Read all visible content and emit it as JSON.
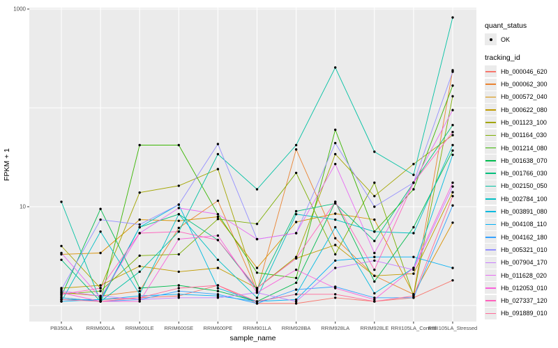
{
  "figure": {
    "background": "#FFFFFF",
    "panel_background": "#EBEBEB",
    "grid_color": "#FFFFFF",
    "point_color": "#000000",
    "axis_text_color": "#4D4D4D",
    "axis_title_color": "#000000"
  },
  "legend": {
    "quant_status": {
      "title": "quant_status",
      "items": [
        {
          "label": "OK",
          "marker": "point",
          "color": "#000000"
        }
      ]
    },
    "tracking_id": {
      "title": "tracking_id"
    }
  },
  "chart_data": {
    "type": "line",
    "title": "",
    "xlabel": "sample_name",
    "ylabel": "FPKM + 1",
    "y_scale": "log10",
    "ylim": [
      0.7,
      1050
    ],
    "y_tick_labels": [
      {
        "value": 10,
        "label": "10"
      },
      {
        "value": 1000,
        "label": "1000"
      }
    ],
    "y_gridlines": [
      1,
      10,
      100,
      1000
    ],
    "grid": "major",
    "legend_position": "right",
    "marker": "black-point",
    "categories": [
      "PB350LA",
      "RRIM600LA",
      "RRIM600LE",
      "RRIM600SE",
      "RRIM600PE",
      "RRIM901LA",
      "RRIM928BA",
      "RRIM928LA",
      "RRIM928LE",
      "RRII105LA_Control",
      "RRII105LA_Stressed"
    ],
    "series": [
      {
        "name": "Hb_000046_620",
        "color": "#F8766D",
        "values": [
          1.15,
          1.15,
          1.2,
          1.25,
          1.6,
          1.05,
          1.05,
          1.2,
          1.1,
          1.2,
          1.8
        ]
      },
      {
        "name": "Hb_000062_300",
        "color": "#EA8331",
        "values": [
          1.35,
          1.25,
          1.4,
          6.1,
          11.5,
          1.4,
          38,
          4.8,
          2.0,
          1.3,
          240
        ]
      },
      {
        "name": "Hb_000572_040",
        "color": "#D89000",
        "values": [
          3.3,
          3.4,
          7.4,
          7.2,
          7.9,
          2.4,
          7.0,
          8.5,
          7.4,
          1.3,
          6.9
        ]
      },
      {
        "name": "Hb_000622_080",
        "color": "#C09B00",
        "values": [
          1.5,
          1.6,
          2.5,
          2.2,
          2.4,
          1.5,
          3.0,
          4.1,
          2.0,
          2.1,
          14
        ]
      },
      {
        "name": "Hb_001123_100",
        "color": "#A3A500",
        "values": [
          4.0,
          1.5,
          13.9,
          16.3,
          24,
          1.5,
          3.1,
          34,
          12.8,
          27,
          53
        ]
      },
      {
        "name": "Hb_001164_030",
        "color": "#7CAE00",
        "values": [
          1.3,
          1.4,
          3.2,
          3.3,
          7.5,
          6.7,
          22,
          3.3,
          17.5,
          1.25,
          131
        ]
      },
      {
        "name": "Hb_001214_080",
        "color": "#39B600",
        "values": [
          1.2,
          1.1,
          42,
          42,
          8.4,
          2.15,
          1.9,
          60,
          5.6,
          15,
          168
        ]
      },
      {
        "name": "Hb_001638_070",
        "color": "#00BB4E",
        "values": [
          1.25,
          9.5,
          1.5,
          1.6,
          1.4,
          1.1,
          1.7,
          11.2,
          1.75,
          6.2,
          37
        ]
      },
      {
        "name": "Hb_001766_030",
        "color": "#00BF7D",
        "values": [
          2.9,
          1.1,
          6.2,
          8.4,
          4.6,
          1.45,
          9.0,
          10.8,
          4.5,
          17.5,
          67
        ]
      },
      {
        "name": "Hb_002150_050",
        "color": "#00C1A3",
        "values": [
          11.2,
          1.1,
          2.2,
          5.6,
          34,
          15,
          42,
          256,
          36,
          21,
          822
        ]
      },
      {
        "name": "Hb_002784_100",
        "color": "#00BFC4",
        "values": [
          1.1,
          5.6,
          1.3,
          8.4,
          2.9,
          1.2,
          8.4,
          7.4,
          5.6,
          5.4,
          42
        ]
      },
      {
        "name": "Hb_003891_080",
        "color": "#00BAE0",
        "values": [
          1.15,
          1.15,
          6.2,
          10.5,
          1.5,
          1.1,
          1.3,
          6.2,
          1.33,
          2.4,
          33.5
        ]
      },
      {
        "name": "Hb_004108_110",
        "color": "#00B0F6",
        "values": [
          1.1,
          1.15,
          1.25,
          1.3,
          1.25,
          1.1,
          1.15,
          2.85,
          3.1,
          3.1,
          2.4
        ]
      },
      {
        "name": "Hb_004162_180",
        "color": "#35A2FF",
        "values": [
          1.2,
          1.1,
          1.15,
          1.4,
          1.3,
          1.05,
          1.45,
          1.55,
          1.2,
          1.2,
          10.3
        ]
      },
      {
        "name": "Hb_005321_010",
        "color": "#9590FF",
        "values": [
          1.45,
          7.4,
          6.6,
          10.5,
          43,
          4.7,
          5.4,
          44,
          10.0,
          17.5,
          232
        ]
      },
      {
        "name": "Hb_007904_170",
        "color": "#C77CFF",
        "values": [
          1.4,
          1.25,
          1.15,
          1.2,
          1.2,
          1.35,
          1.1,
          2.4,
          2.85,
          2.3,
          16
        ]
      },
      {
        "name": "Hb_011628_020",
        "color": "#E76BF3",
        "values": [
          3.4,
          1.2,
          5.4,
          9.7,
          8.4,
          4.7,
          5.4,
          27,
          3.4,
          17.5,
          95
        ]
      },
      {
        "name": "Hb_012053_010",
        "color": "#FA62DB",
        "values": [
          1.35,
          1.1,
          1.1,
          4.7,
          5.1,
          1.35,
          2.3,
          1.5,
          1.15,
          2.4,
          17.5
        ]
      },
      {
        "name": "Hb_027337_120",
        "color": "#FF62BC",
        "values": [
          1.3,
          1.5,
          5.4,
          5.6,
          4.6,
          1.5,
          3.0,
          11.2,
          2.3,
          17.5,
          57
        ]
      },
      {
        "name": "Hb_091889_010",
        "color": "#FF6A98",
        "values": [
          1.15,
          1.1,
          1.2,
          1.5,
          1.6,
          1.1,
          1.3,
          1.3,
          1.1,
          1.25,
          12.8
        ]
      }
    ]
  }
}
